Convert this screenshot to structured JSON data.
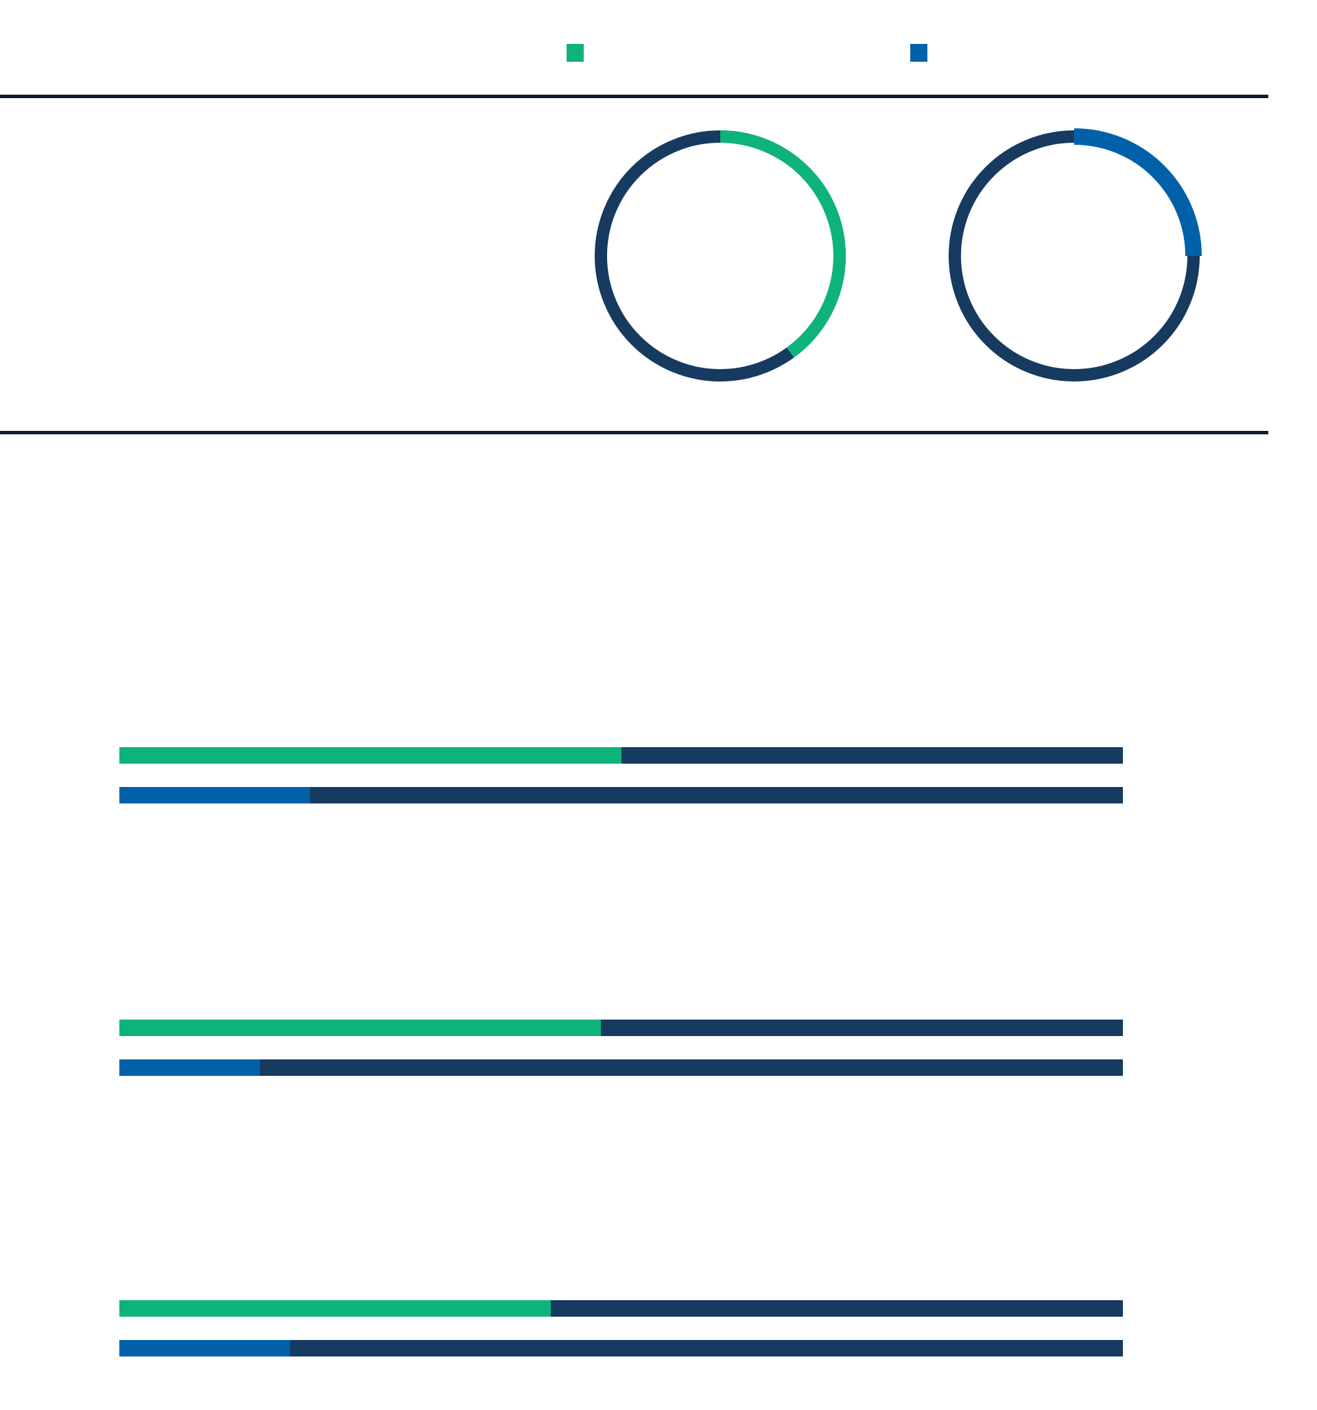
{
  "colors": {
    "series_a": "#0db37b",
    "series_b": "#0061a8",
    "track": "#163a60",
    "rule": "#0f1c2c"
  },
  "chart_data": [
    {
      "type": "pie",
      "variant": "donut",
      "legend": [
        {
          "series": "a",
          "color": "#0db37b"
        },
        {
          "series": "b",
          "color": "#0061a8"
        }
      ],
      "rings": [
        {
          "series": "a",
          "value": 0.4,
          "color": "#0db37b"
        },
        {
          "series": "b",
          "value": 0.25,
          "color": "#0061a8"
        }
      ]
    },
    {
      "type": "bar",
      "orientation": "horizontal",
      "value_scale": [
        0,
        1
      ],
      "groups": [
        {
          "bars": [
            {
              "series": "a",
              "value": 0.5,
              "color": "#0db37b"
            },
            {
              "series": "b",
              "value": 0.19,
              "color": "#0061a8"
            }
          ]
        },
        {
          "bars": [
            {
              "series": "a",
              "value": 0.48,
              "color": "#0db37b"
            },
            {
              "series": "b",
              "value": 0.14,
              "color": "#0061a8"
            }
          ]
        },
        {
          "bars": [
            {
              "series": "a",
              "value": 0.43,
              "color": "#0db37b"
            },
            {
              "series": "b",
              "value": 0.17,
              "color": "#0061a8"
            }
          ]
        }
      ]
    }
  ]
}
